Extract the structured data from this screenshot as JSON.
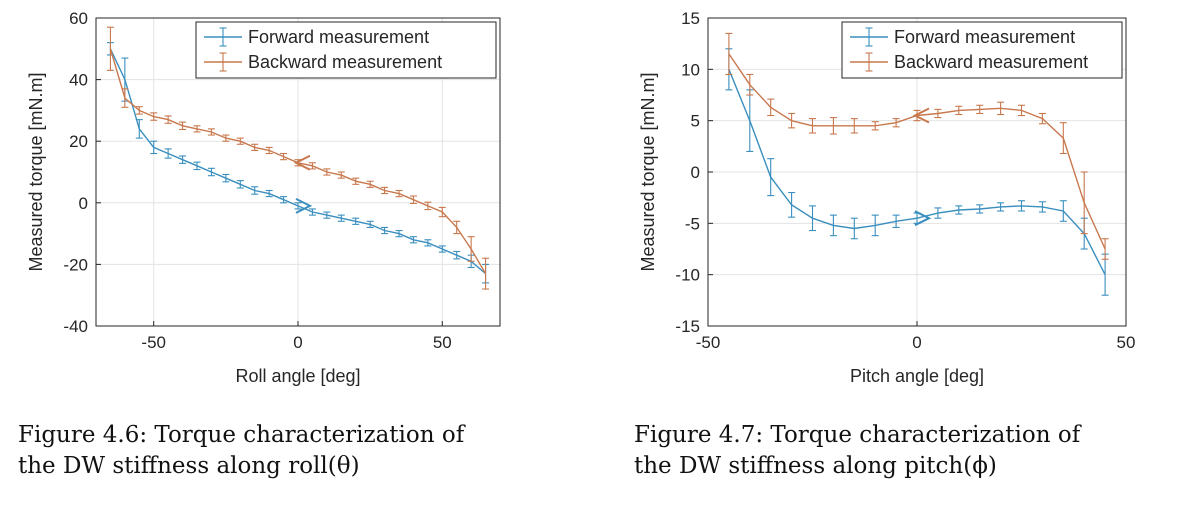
{
  "chart_data": [
    {
      "type": "line",
      "xlabel": "Roll angle [deg]",
      "ylabel": "Measured torque [mN.m]",
      "xlim": [
        -70,
        70
      ],
      "ylim": [
        -40,
        60
      ],
      "xticks": [
        -50,
        0,
        50
      ],
      "yticks": [
        -40,
        -20,
        0,
        20,
        40,
        60
      ],
      "grid": true,
      "legend_position": "top-right",
      "direction_arrows": true,
      "series": [
        {
          "name": "Forward measurement",
          "color": "#3a8fbf",
          "x": [
            -65,
            -60,
            -55,
            -50,
            -45,
            -40,
            -35,
            -30,
            -25,
            -20,
            -15,
            -10,
            -5,
            0,
            5,
            10,
            15,
            20,
            25,
            30,
            35,
            40,
            45,
            50,
            55,
            60,
            65
          ],
          "y": [
            50,
            40,
            24,
            18,
            16,
            14,
            12,
            10,
            8,
            6,
            4,
            3,
            1,
            -1,
            -3,
            -4,
            -5,
            -6,
            -7,
            -9,
            -10,
            -12,
            -13,
            -15,
            -17,
            -19,
            -23
          ],
          "err": [
            2,
            7,
            3,
            2,
            1.5,
            1.2,
            1.2,
            1.2,
            1.2,
            1.2,
            1.2,
            1,
            1,
            1,
            1,
            1,
            1,
            1,
            1,
            1,
            1,
            1,
            1,
            1,
            1.2,
            2,
            3
          ]
        },
        {
          "name": "Backward measurement",
          "color": "#c8784d",
          "x": [
            -65,
            -60,
            -55,
            -50,
            -45,
            -40,
            -35,
            -30,
            -25,
            -20,
            -15,
            -10,
            -5,
            0,
            5,
            10,
            15,
            20,
            25,
            30,
            35,
            40,
            45,
            50,
            55,
            60,
            65
          ],
          "y": [
            50,
            34,
            30,
            28,
            27,
            25,
            24,
            23,
            21,
            20,
            18,
            17,
            15,
            13,
            12,
            10,
            9,
            7,
            6,
            4,
            3,
            1,
            -1,
            -3,
            -8,
            -15,
            -23
          ],
          "err": [
            7,
            3,
            1.2,
            1.2,
            1.2,
            1.2,
            1,
            1,
            1,
            1,
            1,
            1,
            1,
            1,
            1,
            1,
            1,
            1,
            1,
            1,
            1,
            1.2,
            1.2,
            1.5,
            2,
            4,
            5
          ]
        }
      ],
      "caption_lines": [
        "Figure 4.6:  Torque characterization of",
        "the DW stiffness along roll(θ)"
      ]
    },
    {
      "type": "line",
      "xlabel": "Pitch angle [deg]",
      "ylabel": "Measured torque [mN.m]",
      "xlim": [
        -50,
        50
      ],
      "ylim": [
        -15,
        15
      ],
      "xticks": [
        -50,
        0,
        50
      ],
      "yticks": [
        -15,
        -10,
        -5,
        0,
        5,
        10,
        15
      ],
      "grid": true,
      "legend_position": "top-right",
      "direction_arrows": true,
      "series": [
        {
          "name": "Forward measurement",
          "color": "#3a8fbf",
          "x": [
            -45,
            -40,
            -35,
            -30,
            -25,
            -20,
            -15,
            -10,
            -5,
            0,
            5,
            10,
            15,
            20,
            25,
            30,
            35,
            40,
            45
          ],
          "y": [
            10,
            5,
            -0.5,
            -3.2,
            -4.5,
            -5.2,
            -5.5,
            -5.2,
            -4.8,
            -4.5,
            -4,
            -3.7,
            -3.6,
            -3.4,
            -3.3,
            -3.4,
            -3.8,
            -6,
            -10
          ],
          "err": [
            2,
            3,
            1.8,
            1.2,
            1.2,
            1,
            1,
            1,
            0.6,
            0.5,
            0.5,
            0.4,
            0.4,
            0.4,
            0.5,
            0.5,
            1,
            1.5,
            2
          ]
        },
        {
          "name": "Backward measurement",
          "color": "#c8784d",
          "x": [
            -45,
            -40,
            -35,
            -30,
            -25,
            -20,
            -15,
            -10,
            -5,
            0,
            5,
            10,
            15,
            20,
            25,
            30,
            35,
            40,
            45
          ],
          "y": [
            11.5,
            8.5,
            6.3,
            5,
            4.5,
            4.5,
            4.5,
            4.5,
            4.8,
            5.5,
            5.7,
            6,
            6.1,
            6.2,
            6,
            5.2,
            3.3,
            -3,
            -7.5
          ],
          "err": [
            2,
            1,
            0.8,
            0.7,
            0.7,
            0.8,
            0.7,
            0.4,
            0.4,
            0.5,
            0.4,
            0.4,
            0.4,
            0.6,
            0.5,
            0.5,
            1.5,
            3,
            1
          ]
        }
      ],
      "caption_lines": [
        "Figure 4.7:  Torque characterization of",
        "the DW stiffness along pitch(ϕ)"
      ]
    }
  ]
}
